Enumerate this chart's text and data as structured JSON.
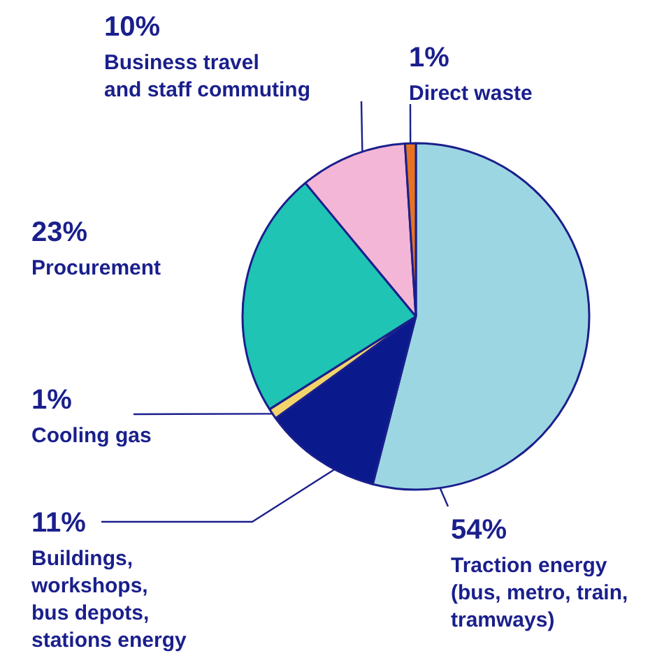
{
  "chart_data": {
    "type": "pie",
    "categories": [
      "Traction energy\n(bus, metro, train,\ntramways)",
      "Buildings,\nworkshops,\nbus depots,\nstations energy",
      "Cooling gas",
      "Procurement",
      "Business travel\nand staff commuting",
      "Direct waste"
    ],
    "values": [
      54,
      11,
      1,
      23,
      10,
      1
    ],
    "value_labels": [
      "54%",
      "11%",
      "1%",
      "23%",
      "10%",
      "1%"
    ],
    "colors": [
      "#9dd6e3",
      "#0a1a8c",
      "#f2d46a",
      "#1fc4b4",
      "#f4b6d6",
      "#e8731e"
    ]
  }
}
